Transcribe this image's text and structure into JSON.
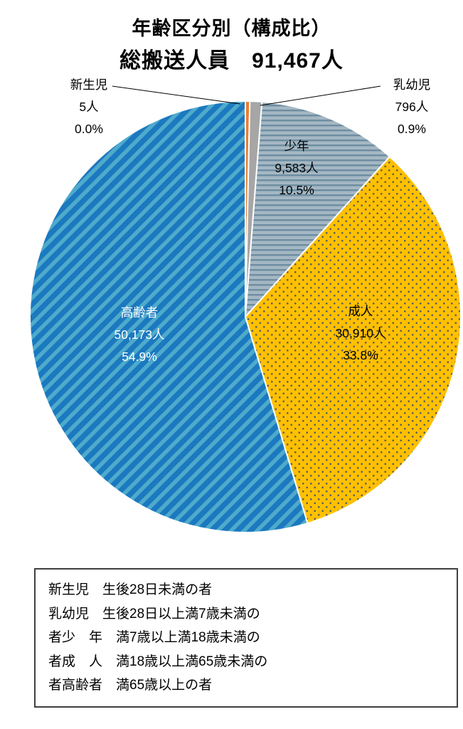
{
  "title": "年齢区分別（構成比）",
  "subtitle": "総搬送人員　91,467人",
  "chart_data": {
    "type": "pie",
    "title": "年齢区分別（構成比）",
    "subtitle": "総搬送人員　91,467人",
    "total_label": "総搬送人員",
    "total_value": 91467,
    "total_value_label": "91,467人",
    "start_angle": "top",
    "direction": "clockwise",
    "legend_position": "none",
    "slices": [
      {
        "id": "newborn",
        "label": "新生児",
        "count": 5,
        "count_label": "5人",
        "percent": 0.0,
        "percent_label": "0.0%",
        "color": "#ED7D31",
        "pattern": "solid",
        "pattern_color": "#ED7D31",
        "label_position": "outside-left"
      },
      {
        "id": "infant",
        "label": "乳幼児",
        "count": 796,
        "count_label": "796人",
        "percent": 0.9,
        "percent_label": "0.9%",
        "color": "#A6A6A6",
        "pattern": "solid",
        "pattern_color": "#A6A6A6",
        "label_position": "outside-right"
      },
      {
        "id": "youth",
        "label": "少年",
        "count": 9583,
        "count_label": "9,583人",
        "percent": 10.5,
        "percent_label": "10.5%",
        "color": "#A4B7C3",
        "pattern": "horizontal-stripes",
        "pattern_color": "#6D8DA1",
        "label_position": "inside"
      },
      {
        "id": "adult",
        "label": "成人",
        "count": 30910,
        "count_label": "30,910人",
        "percent": 33.8,
        "percent_label": "33.8%",
        "color": "#FFC000",
        "pattern": "dots",
        "pattern_color": "#5f5f5f",
        "label_position": "inside"
      },
      {
        "id": "elderly",
        "label": "高齢者",
        "count": 50173,
        "count_label": "50,173人",
        "percent": 54.9,
        "percent_label": "54.9%",
        "color": "#1B79C0",
        "pattern": "diagonal-stripes",
        "pattern_color": "#4FAACB",
        "label_position": "inside",
        "text_color": "#FFFFFF"
      }
    ]
  },
  "legend": {
    "lines": [
      "新生児　生後28日未満の者",
      "乳幼児　生後28日以上満7歳未満の",
      "者少　年　満7歳以上満18歳未満の",
      "者成　人　満18歳以上満65歳未満の",
      "者高齢者　満65歳以上の者"
    ]
  }
}
